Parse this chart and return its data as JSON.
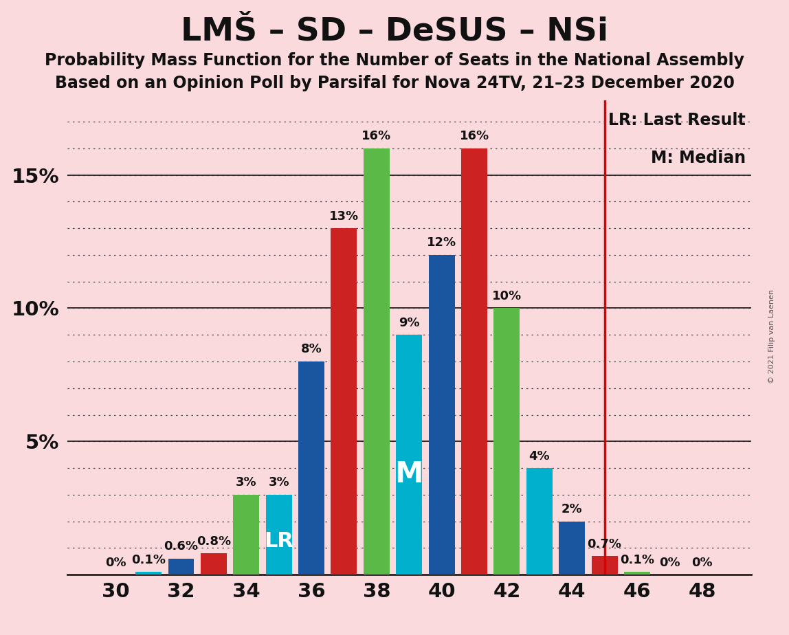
{
  "title": "LMŠ – SD – DeSUS – NSi",
  "subtitle1": "Probability Mass Function for the Number of Seats in the National Assembly",
  "subtitle2": "Based on an Opinion Poll by Parsifal for Nova 24TV, 21–23 December 2020",
  "copyright": "© 2021 Filip van Laenen",
  "background_color": "#fadadd",
  "seats": [
    30,
    31,
    32,
    33,
    34,
    35,
    36,
    37,
    38,
    39,
    40,
    41,
    42,
    43,
    44,
    45,
    46,
    47,
    48
  ],
  "probabilities": [
    0.0,
    0.001,
    0.006,
    0.008,
    0.03,
    0.03,
    0.08,
    0.13,
    0.16,
    0.09,
    0.12,
    0.16,
    0.1,
    0.04,
    0.02,
    0.007,
    0.001,
    0.0,
    0.0
  ],
  "bar_labels": [
    "0%",
    "0.1%",
    "0.6%",
    "0.8%",
    "3%",
    "3%",
    "8%",
    "13%",
    "16%",
    "9%",
    "12%",
    "16%",
    "10%",
    "4%",
    "2%",
    "0.7%",
    "0.1%",
    "0%",
    "0%"
  ],
  "colors": [
    "#5bba47",
    "#00b0cc",
    "#1a56a0",
    "#cc2222",
    "#5bba47",
    "#00b0cc",
    "#1a56a0",
    "#cc2222",
    "#5bba47",
    "#00b0cc",
    "#1a56a0",
    "#cc2222",
    "#5bba47",
    "#00b0cc",
    "#1a56a0",
    "#cc2222",
    "#5bba47",
    "#00b0cc",
    "#1a56a0"
  ],
  "lr_line_x": 45,
  "lr_line_color": "#dd0000",
  "lr_label_seat": 35,
  "median_label_seat": 39,
  "ylim": [
    0,
    0.178
  ],
  "xlim": [
    28.5,
    49.5
  ],
  "ytick_positions": [
    0.05,
    0.1,
    0.15
  ],
  "ytick_labels": [
    "5%",
    "10%",
    "15%"
  ],
  "xtick_positions": [
    30,
    32,
    34,
    36,
    38,
    40,
    42,
    44,
    46,
    48
  ],
  "title_fontsize": 34,
  "subtitle_fontsize": 17,
  "tick_fontsize": 21,
  "bar_label_fontsize": 13,
  "legend_fontsize": 17,
  "lr_inside_fontsize": 22,
  "m_inside_fontsize": 30
}
